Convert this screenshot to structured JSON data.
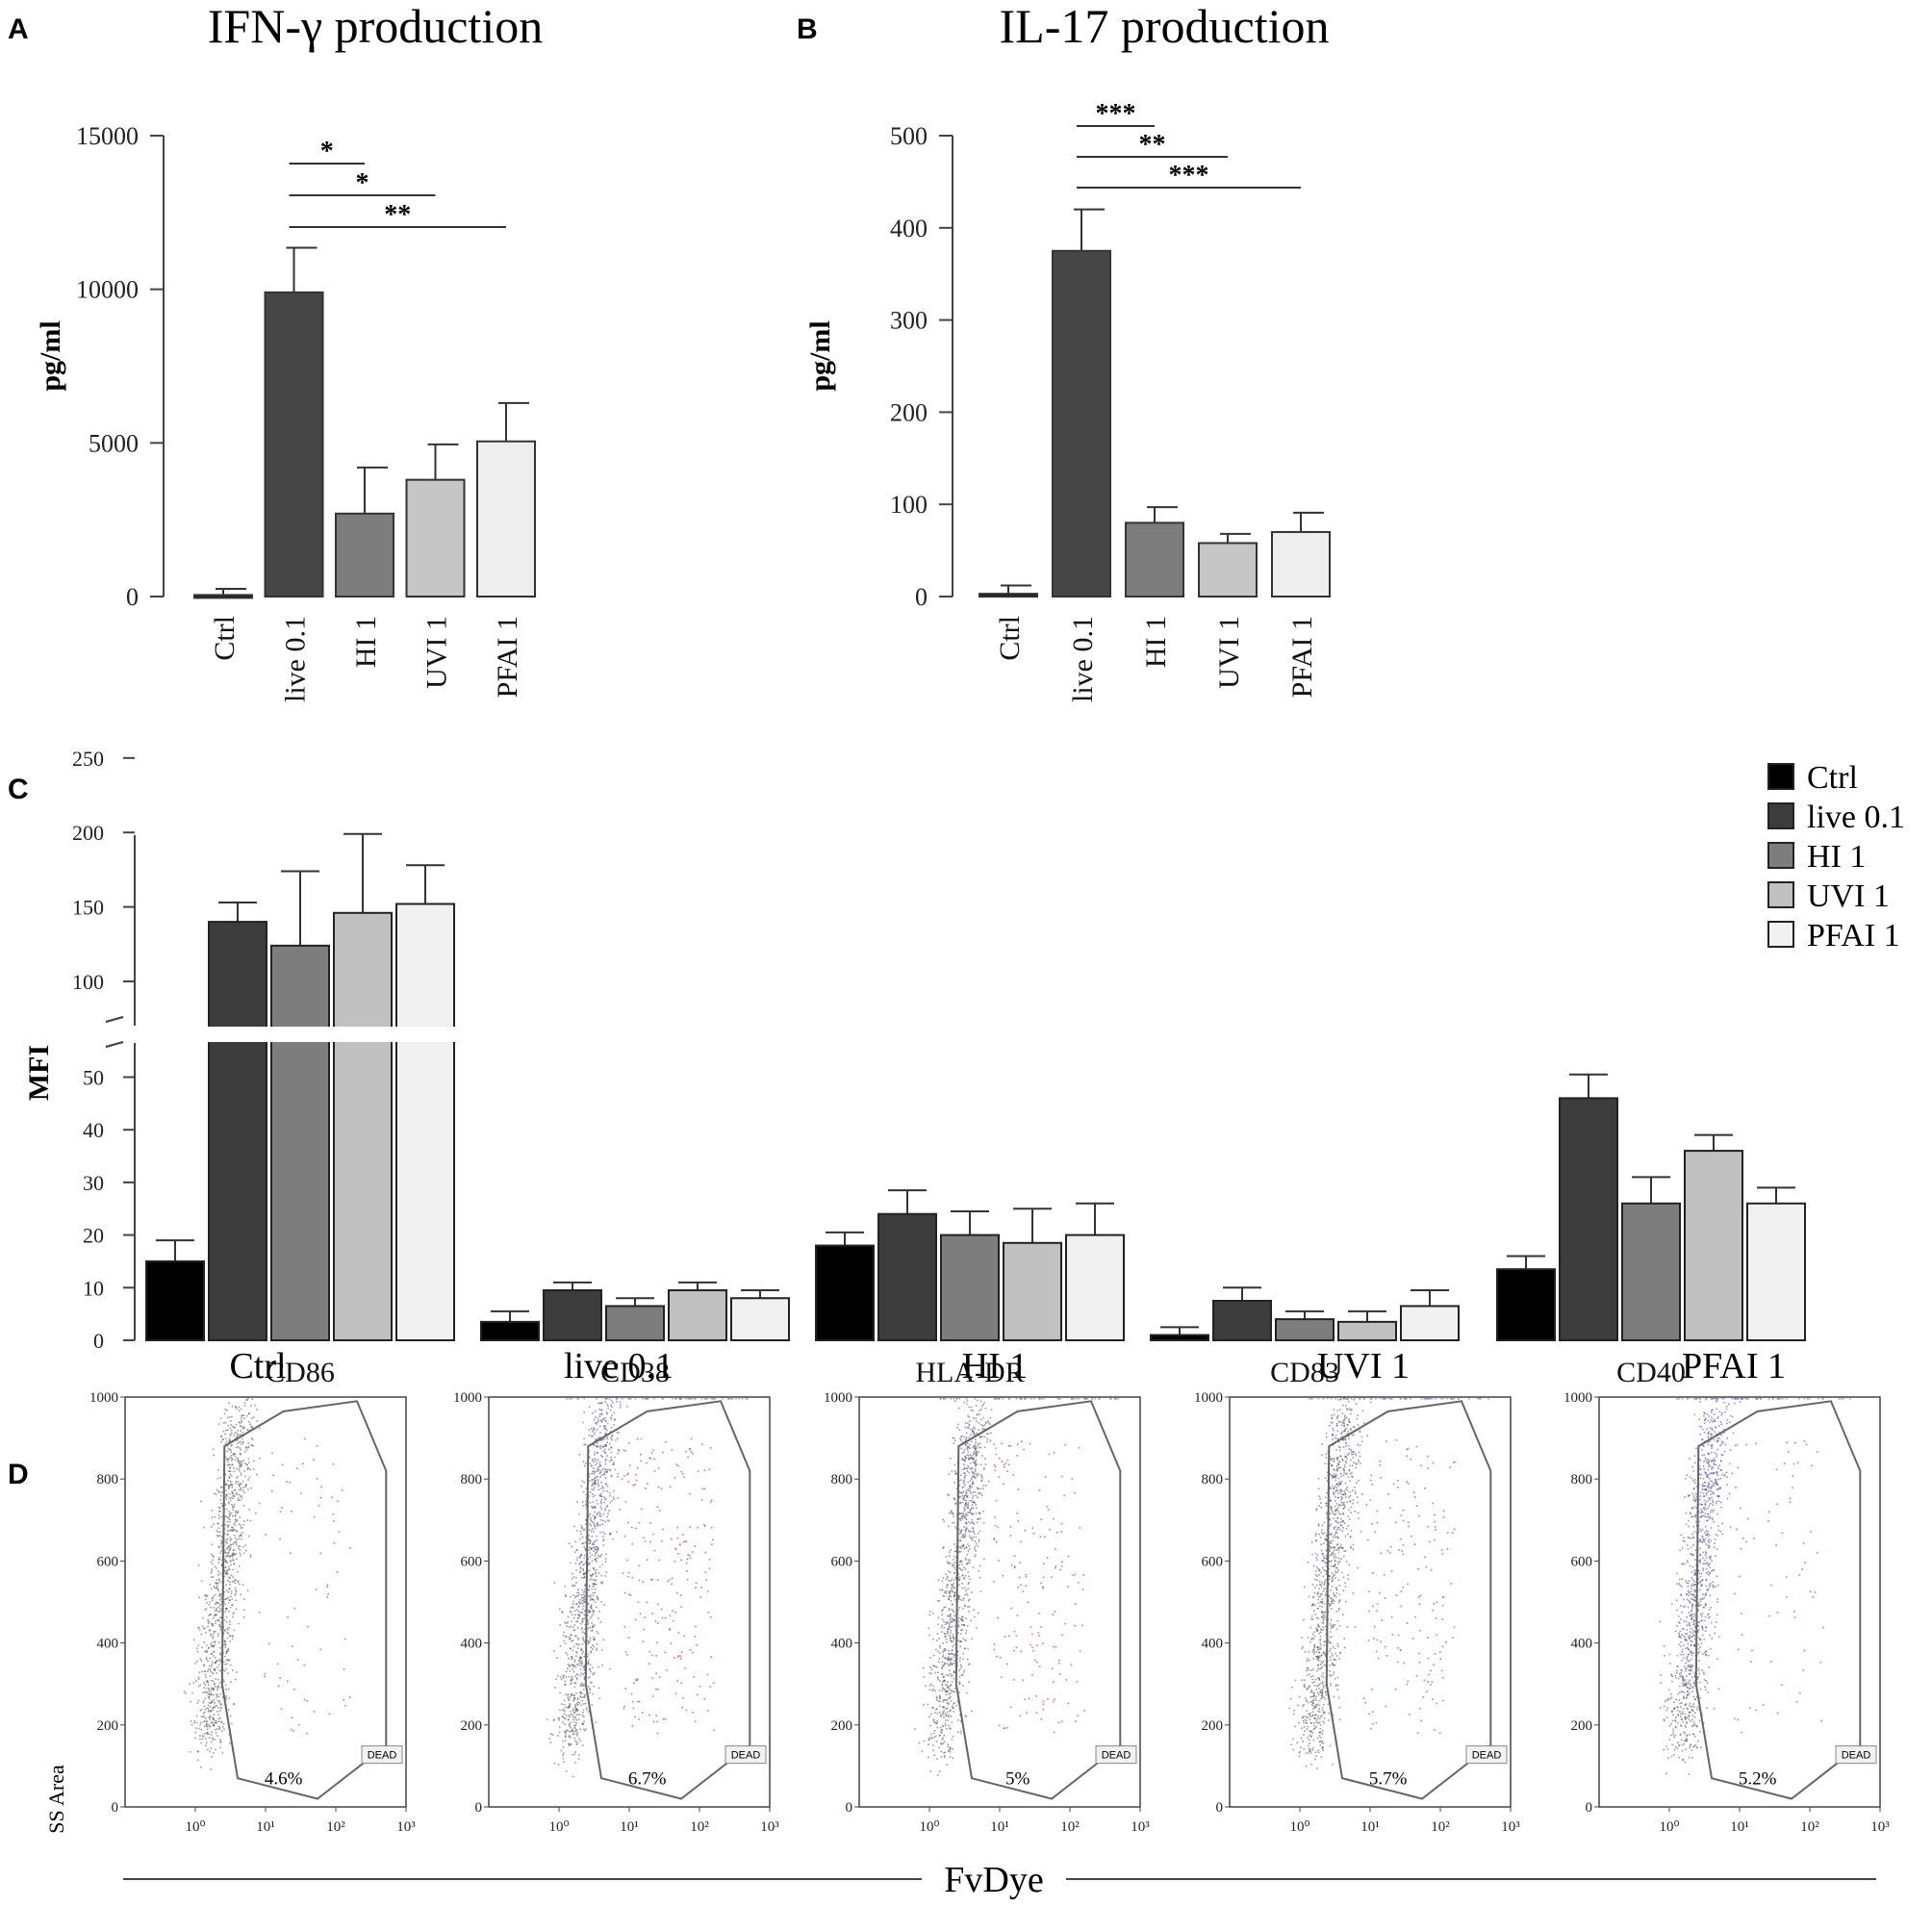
{
  "panels": {
    "a": {
      "letter": "A",
      "title": "IFN-γ production"
    },
    "b": {
      "letter": "B",
      "title": "IL-17 production"
    },
    "c": {
      "letter": "C"
    },
    "d": {
      "letter": "D"
    }
  },
  "chart_data": [
    {
      "id": "A",
      "type": "bar",
      "title": "IFN-γ production",
      "xlabel": "",
      "ylabel": "pg/ml",
      "ylim": [
        0,
        15000
      ],
      "yticks": [
        0,
        5000,
        10000,
        15000
      ],
      "ytick_labels": [
        "0",
        "5000",
        "10000",
        "15000"
      ],
      "categories": [
        "Ctrl",
        "live 0.1",
        "HI 1",
        "UVI 1",
        "PFAI 1"
      ],
      "values": [
        50,
        9900,
        2700,
        3800,
        5050
      ],
      "errors": [
        200,
        1450,
        1500,
        1150,
        1250
      ],
      "colors": [
        "#1c1c1c",
        "#464646",
        "#7d7d7d",
        "#c6c6c6",
        "#eeeeee"
      ],
      "significance": [
        {
          "from": "live 0.1",
          "to": "HI 1",
          "label": "*"
        },
        {
          "from": "live 0.1",
          "to": "UVI 1",
          "label": "*"
        },
        {
          "from": "live 0.1",
          "to": "PFAI 1",
          "label": "**"
        }
      ]
    },
    {
      "id": "B",
      "type": "bar",
      "title": "IL-17 production",
      "xlabel": "",
      "ylabel": "pg/ml",
      "ylim": [
        0,
        500
      ],
      "yticks": [
        0,
        100,
        200,
        300,
        400,
        500
      ],
      "ytick_labels": [
        "0",
        "100",
        "200",
        "300",
        "400",
        "500"
      ],
      "categories": [
        "Ctrl",
        "live 0.1",
        "HI 1",
        "UVI 1",
        "PFAI 1"
      ],
      "values": [
        3,
        375,
        80,
        58,
        70
      ],
      "errors": [
        9,
        45,
        17,
        10,
        21
      ],
      "colors": [
        "#1c1c1c",
        "#464646",
        "#7d7d7d",
        "#c6c6c6",
        "#eeeeee"
      ],
      "significance": [
        {
          "from": "live 0.1",
          "to": "HI 1",
          "label": "***"
        },
        {
          "from": "live 0.1",
          "to": "UVI 1",
          "label": "**"
        },
        {
          "from": "live 0.1",
          "to": "PFAI 1",
          "label": "***"
        }
      ]
    },
    {
      "id": "C",
      "type": "bar",
      "title": "",
      "xlabel": "",
      "ylabel": "MFI",
      "axis_break": {
        "lower": [
          0,
          55
        ],
        "upper": [
          75,
          250
        ]
      },
      "yticks_lower": [
        0,
        10,
        20,
        30,
        40,
        50
      ],
      "yticks_upper": [
        100,
        150,
        200,
        250
      ],
      "categories": [
        "CD86",
        "CD38",
        "HLA-DR",
        "CD83",
        "CD40"
      ],
      "series": [
        {
          "name": "Ctrl",
          "color": "#000000",
          "values": [
            15,
            3.5,
            18,
            1,
            13.5
          ],
          "errors": [
            4,
            2,
            2.5,
            1.5,
            2.5
          ]
        },
        {
          "name": "live 0.1",
          "color": "#3c3c3c",
          "values": [
            140,
            9.5,
            24,
            7.5,
            46
          ],
          "errors": [
            13,
            1.5,
            4.5,
            2.5,
            4.5
          ]
        },
        {
          "name": "HI 1",
          "color": "#7d7d7d",
          "values": [
            124,
            6.5,
            20,
            4,
            26
          ],
          "errors": [
            50,
            1.5,
            4.5,
            1.5,
            5
          ]
        },
        {
          "name": "UVI 1",
          "color": "#c0c0c0",
          "values": [
            146,
            9.5,
            18.5,
            3.5,
            36
          ],
          "errors": [
            53,
            1.5,
            6.5,
            2,
            3
          ]
        },
        {
          "name": "PFAI 1",
          "color": "#f0f0f0",
          "values": [
            152,
            8,
            20,
            6.5,
            26
          ],
          "errors": [
            26,
            1.5,
            6,
            3,
            3
          ]
        }
      ],
      "legend": {
        "placement": "top-right",
        "entries": [
          "Ctrl",
          "live 0.1",
          "HI 1",
          "UVI 1",
          "PFAI 1"
        ]
      }
    },
    {
      "id": "D",
      "type": "scatter",
      "title": "",
      "xlabel": "FvDye",
      "ylabel": "SS Area",
      "xscale": "log",
      "xlim": [
        0.1,
        1000
      ],
      "ylim": [
        0,
        1000
      ],
      "xtick_labels": [
        "10⁰",
        "10¹",
        "10²",
        "10³"
      ],
      "ytick_labels": [
        "0",
        "200",
        "400",
        "600",
        "800",
        "1000"
      ],
      "gate_label": "DEAD",
      "samples": [
        {
          "name": "Ctrl",
          "dead_percent": "4.6%"
        },
        {
          "name": "live 0.1",
          "dead_percent": "6.7%"
        },
        {
          "name": "HI 1",
          "dead_percent": "5%"
        },
        {
          "name": "UVI 1",
          "dead_percent": "5.7%"
        },
        {
          "name": "PFAI 1",
          "dead_percent": "5.2%"
        }
      ]
    }
  ]
}
